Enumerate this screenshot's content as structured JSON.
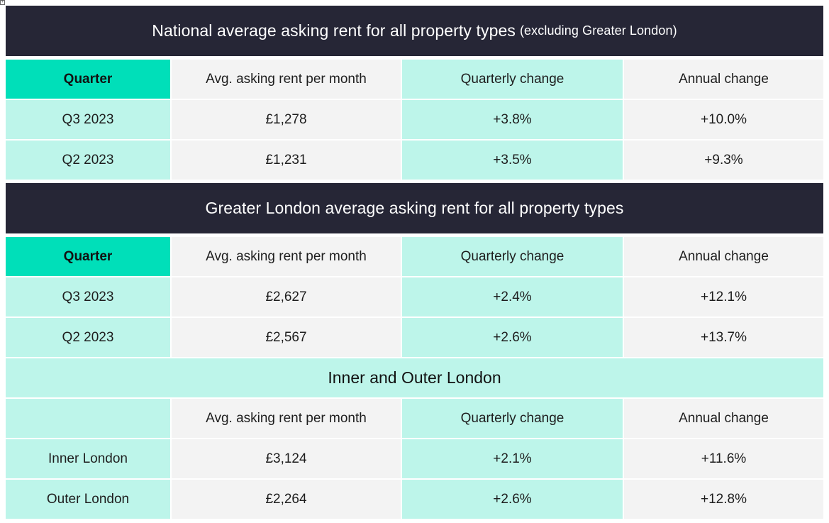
{
  "national": {
    "title": "National average asking rent for all property types",
    "subtitle": "(excluding Greater London)",
    "headers": [
      "Quarter",
      "Avg. asking rent per month",
      "Quarterly change",
      "Annual change"
    ],
    "rows": [
      [
        "Q3 2023",
        "£1,278",
        "+3.8%",
        "+10.0%"
      ],
      [
        "Q2 2023",
        "£1,231",
        "+3.5%",
        "+9.3%"
      ]
    ]
  },
  "greater_london": {
    "title": "Greater London average asking rent for all property types",
    "headers": [
      "Quarter",
      "Avg. asking rent per month",
      "Quarterly change",
      "Annual change"
    ],
    "rows": [
      [
        "Q3 2023",
        "£2,627",
        "+2.4%",
        "+12.1%"
      ],
      [
        "Q2 2023",
        "£2,567",
        "+2.6%",
        "+13.7%"
      ]
    ]
  },
  "inner_outer": {
    "title": "Inner and Outer London",
    "headers": [
      "",
      "Avg. asking rent per month",
      "Quarterly change",
      "Annual change"
    ],
    "rows": [
      [
        "Inner London",
        "£3,124",
        "+2.1%",
        "+11.6%"
      ],
      [
        "Outer London",
        "£2,264",
        "+2.6%",
        "+12.8%"
      ]
    ]
  },
  "colors": {
    "title_band": "#262636",
    "quarter_header": "#00dfb9",
    "mint": "#bdf5ea",
    "grey": "#f3f3f3"
  },
  "icons": {
    "table_anchor": "table-move-handle-icon"
  }
}
